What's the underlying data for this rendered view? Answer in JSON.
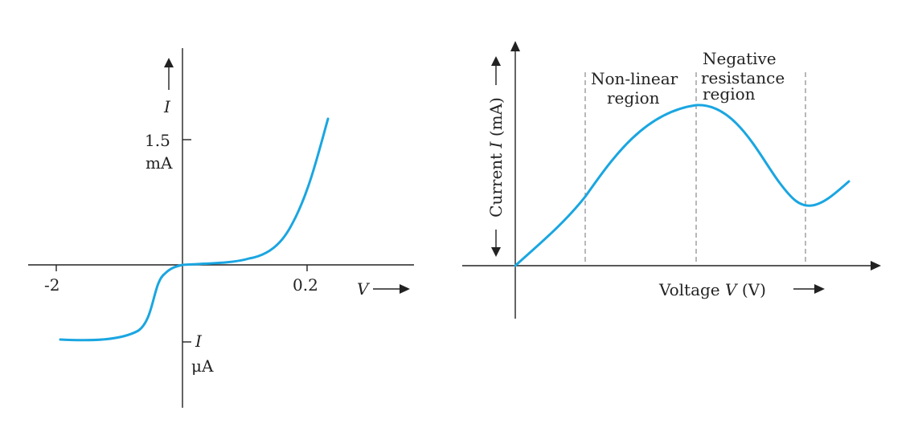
{
  "colors": {
    "curve": "#1aa6e1",
    "axis": "#222222",
    "dashed": "#9a9a9a",
    "background": "#ffffff"
  },
  "chart_data": [
    {
      "type": "line",
      "title": "",
      "xlabel": "V",
      "ylabel": "I",
      "y_unit_positive": "mA",
      "y_unit_negative": "μA",
      "x_tick_labels": [
        "-2",
        "0.2"
      ],
      "y_tick_labels": [
        "1.5",
        "I"
      ],
      "grid": false,
      "legend": "none",
      "series": [
        {
          "x": [
            -2.0,
            -1.8,
            -1.5,
            -1.2,
            -0.9,
            -0.7,
            -0.5,
            -0.3,
            -0.15,
            0.0,
            0.025,
            0.05,
            0.08,
            0.1,
            0.12,
            0.14,
            0.16,
            0.18,
            0.2,
            0.215,
            0.23
          ],
          "y": [
            -0.9,
            -0.9,
            -0.88,
            -0.82,
            -0.7,
            -0.45,
            -0.2,
            -0.06,
            -0.02,
            0.0,
            0.05,
            0.1,
            0.17,
            0.23,
            0.3,
            0.4,
            0.55,
            0.75,
            1.05,
            1.32,
            1.6
          ]
        }
      ]
    },
    {
      "type": "line",
      "title": "",
      "xlabel": "Voltage V (V)",
      "ylabel": "Current I (mA)",
      "grid": false,
      "legend": "none",
      "annotations": [
        "Non-linear region",
        "Negative resistance region"
      ],
      "series": [
        {
          "x": [
            0,
            10,
            20,
            25,
            30,
            35,
            40,
            45,
            50,
            55,
            60,
            65,
            70,
            75,
            80,
            85,
            90,
            95,
            100
          ],
          "y": [
            0,
            22,
            42,
            53,
            64,
            73,
            80,
            84,
            85,
            82,
            74,
            62,
            48,
            35,
            26,
            25,
            29,
            36,
            43
          ]
        }
      ]
    }
  ],
  "left_chart": {
    "x_label": "V",
    "x_arrow": "⟶",
    "y_label": "I",
    "y_arrow": "⟶",
    "tick_neg2": "-2",
    "tick_02": "0.2",
    "tick_15": "1.5",
    "unit_ma": "mA",
    "neg_label": "I",
    "unit_ua": "μA"
  },
  "right_chart": {
    "x_label_prefix": "Voltage ",
    "x_label_var": "V",
    "x_label_suffix": " (V)",
    "x_arrow": "⟶",
    "y_label_prefix": "Current ",
    "y_label_var": "I",
    "y_label_suffix": " (mA)",
    "region1_line1": "Non-linear",
    "region1_line2": "region",
    "region2_line1": "Negative",
    "region2_line2": "resistance",
    "region2_line3": "region"
  }
}
